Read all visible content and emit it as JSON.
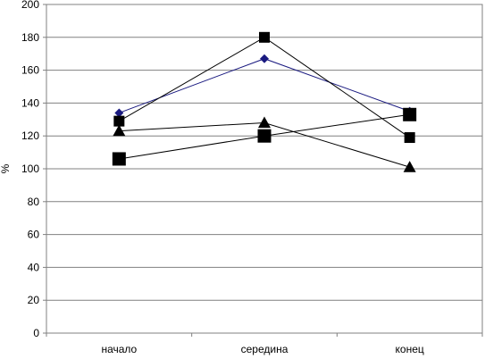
{
  "chart_data": {
    "type": "line",
    "title": "",
    "xlabel": "",
    "ylabel": "%",
    "ylim": [
      0,
      200
    ],
    "yticks": [
      0,
      20,
      40,
      60,
      80,
      100,
      120,
      140,
      160,
      180,
      200
    ],
    "categories": [
      "начало",
      "середина",
      "конец"
    ],
    "grid": "horizontal",
    "legend": "none",
    "series": [
      {
        "values": [
          134,
          167,
          135
        ],
        "color": "#1a1a80",
        "marker": "diamond"
      },
      {
        "values": [
          129,
          180,
          119
        ],
        "color": "#000000",
        "marker": "square"
      },
      {
        "values": [
          123,
          128,
          101
        ],
        "color": "#000000",
        "marker": "triangle"
      },
      {
        "values": [
          106,
          120,
          133
        ],
        "color": "#000000",
        "marker": "square-large"
      }
    ]
  }
}
